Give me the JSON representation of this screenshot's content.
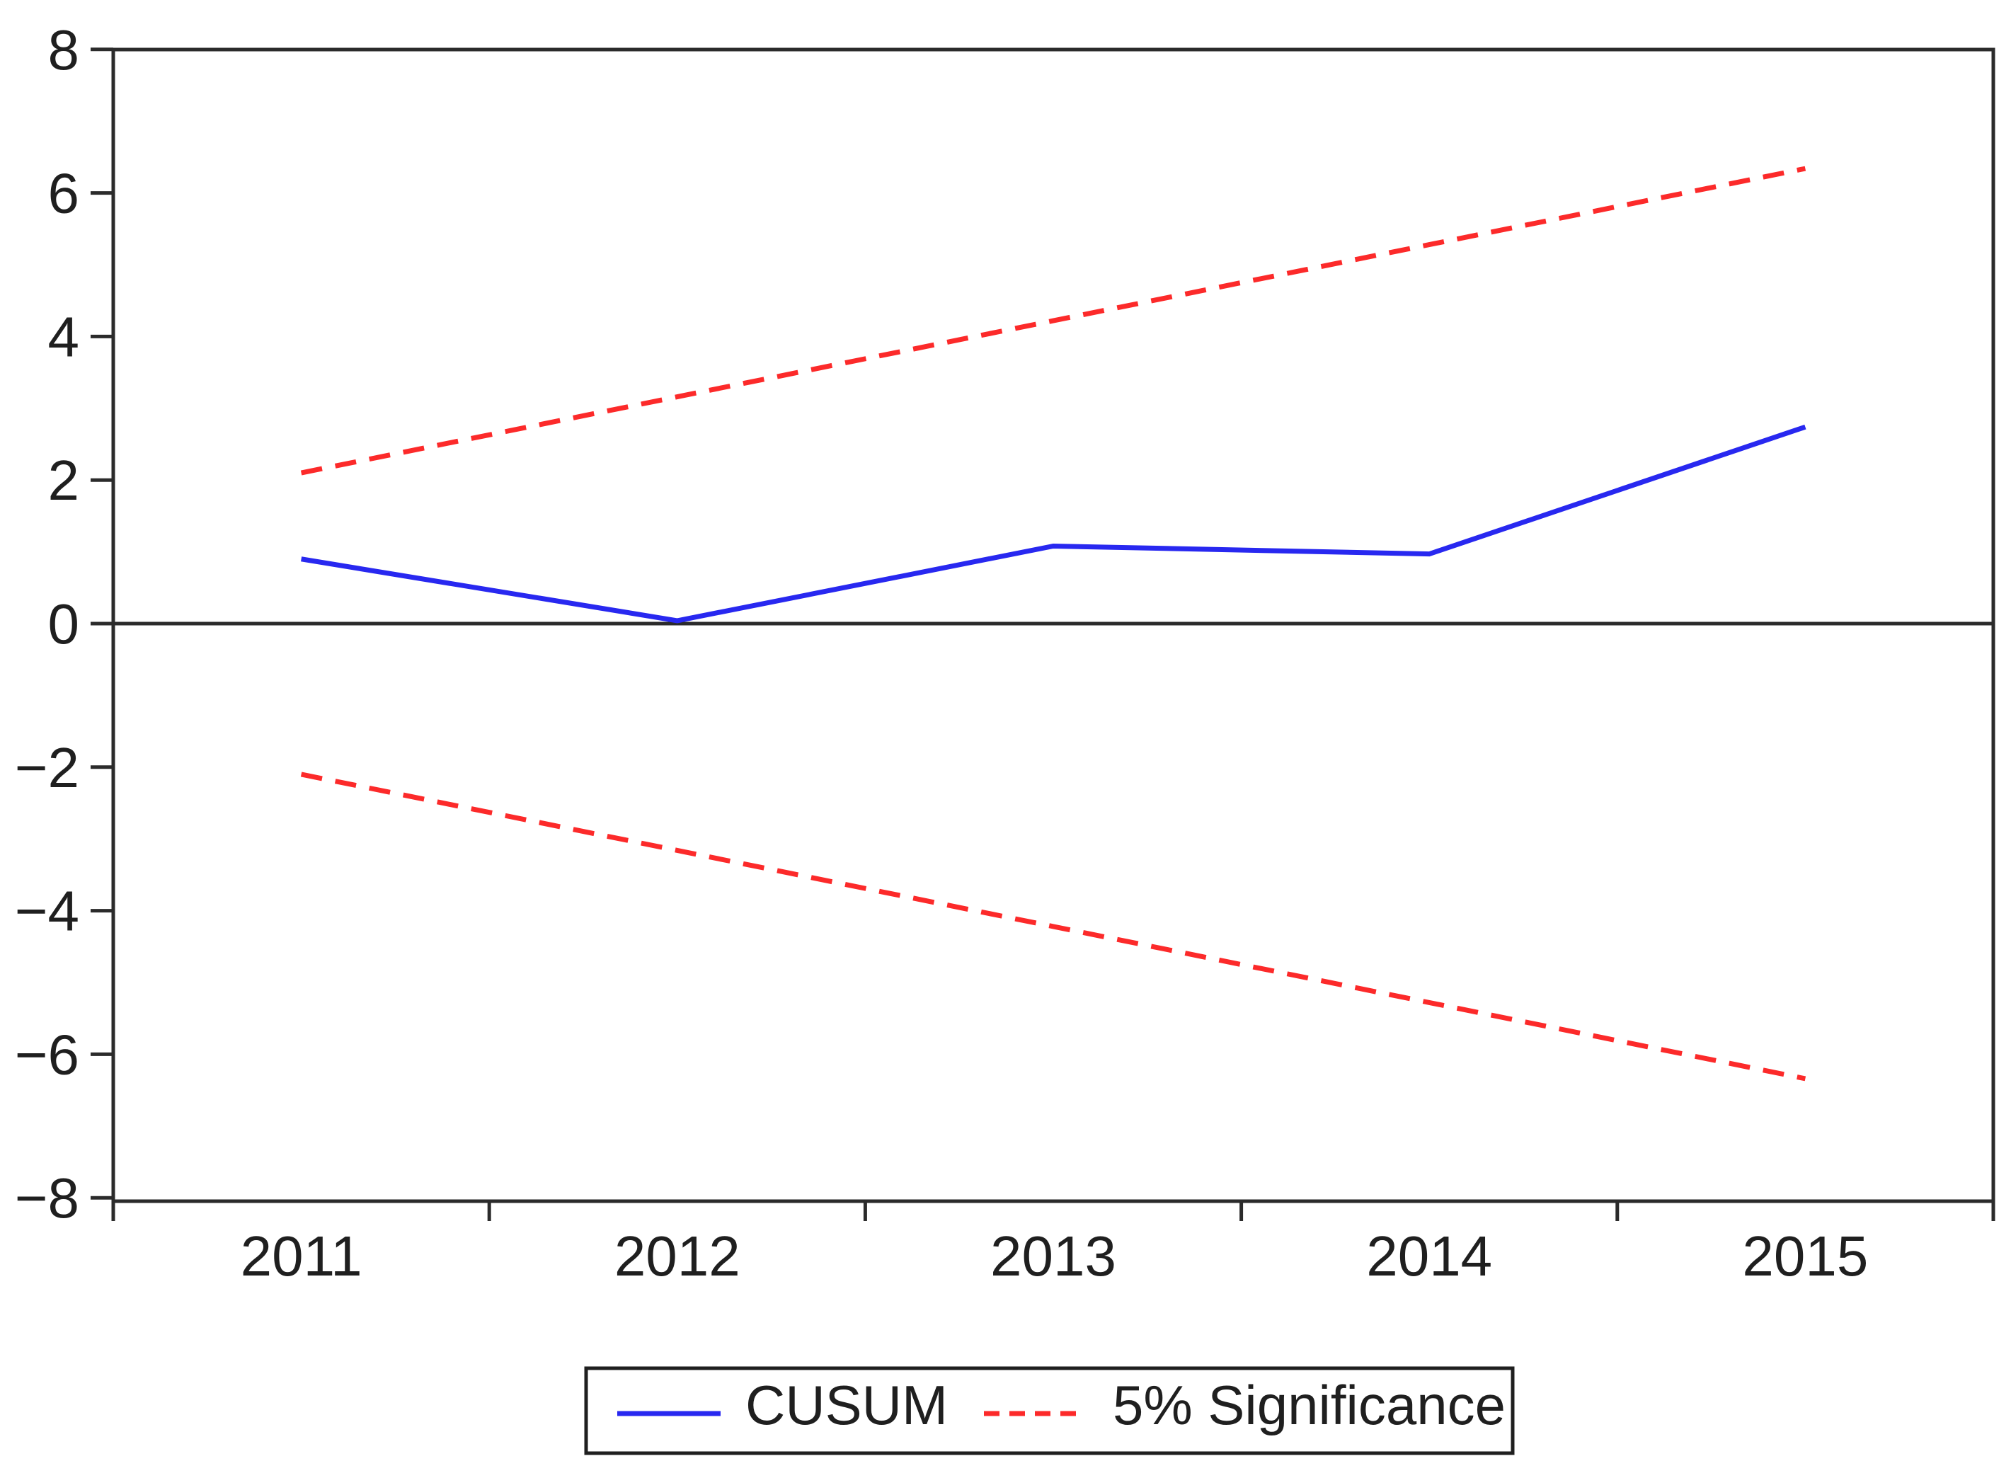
{
  "chart_data": {
    "type": "line",
    "title": "",
    "xlabel": "",
    "ylabel": "",
    "categories": [
      "2011",
      "2012",
      "2013",
      "2014",
      "2015"
    ],
    "x_years": [
      2011,
      2012,
      2013,
      2014,
      2015
    ],
    "series": [
      {
        "name": "CUSUM",
        "style": "solid",
        "color": "#2828f0",
        "values": [
          0.9,
          0.04,
          1.08,
          0.97,
          2.74
        ]
      },
      {
        "name": "5% Significance (upper bound)",
        "style": "dashed",
        "color": "#fc2a2a",
        "values": [
          2.1,
          3.16,
          4.22,
          5.28,
          6.34
        ]
      },
      {
        "name": "5% Significance (lower bound)",
        "style": "dashed",
        "color": "#fc2a2a",
        "values": [
          -2.1,
          -3.16,
          -4.22,
          -5.28,
          -6.34
        ]
      }
    ],
    "ylim": [
      -8,
      8
    ],
    "yticks": [
      8,
      6,
      4,
      2,
      0,
      -2,
      -4,
      -6,
      -8
    ],
    "x_axis_boundaries": [
      2010.5,
      2011.5,
      2012.5,
      2013.5,
      2014.5,
      2015.5
    ],
    "zero_line": true,
    "grid": false,
    "legend": {
      "position": "bottom",
      "items": [
        {
          "label": "CUSUM",
          "style": "solid",
          "color": "#2828f0"
        },
        {
          "label": "5% Significance",
          "style": "dashed",
          "color": "#fc2a2a"
        }
      ]
    }
  }
}
